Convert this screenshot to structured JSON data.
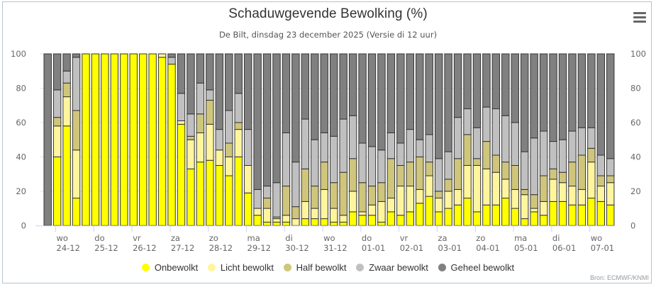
{
  "header": {
    "title": "Schaduwgevende Bewolking (%)",
    "subtitle": "De Bilt, dinsdag 23 december 2025 (Versie di 12 uur)",
    "menu_icon": "hamburger-menu-icon"
  },
  "credits": "Bron: ECMWF/KNMI",
  "colors": {
    "onbewolkt": "#ffff00",
    "licht": "#fff59d",
    "half": "#cfc67c",
    "zwaar": "#c0c0c0",
    "geheel": "#808080",
    "bar_border": "#333333",
    "grid": "#e6e6e6",
    "frame": "#b3c4d1"
  },
  "chart_data": {
    "type": "bar",
    "stacked": true,
    "title": "Schaduwgevende Bewolking (%)",
    "subtitle": "De Bilt, dinsdag 23 december 2025 (Versie di 12 uur)",
    "xlabel": "",
    "ylabel": "",
    "ylim": [
      0,
      100
    ],
    "yticks": [
      "0",
      "20",
      "40",
      "60",
      "80",
      "100"
    ],
    "grid": true,
    "legend_position": "bottom",
    "x_tick_labels": [
      {
        "day": "wo",
        "date": "24-12"
      },
      {
        "day": "do",
        "date": "25-12"
      },
      {
        "day": "vr",
        "date": "26-12"
      },
      {
        "day": "za",
        "date": "27-12"
      },
      {
        "day": "zo",
        "date": "28-12"
      },
      {
        "day": "ma",
        "date": "29-12"
      },
      {
        "day": "di",
        "date": "30-12"
      },
      {
        "day": "wo",
        "date": "31-12"
      },
      {
        "day": "do",
        "date": "01-01"
      },
      {
        "day": "vr",
        "date": "02-01"
      },
      {
        "day": "za",
        "date": "03-01"
      },
      {
        "day": "zo",
        "date": "04-01"
      },
      {
        "day": "ma",
        "date": "05-01"
      },
      {
        "day": "di",
        "date": "06-01"
      },
      {
        "day": "wo",
        "date": "07-01"
      }
    ],
    "interval": "6-hourly",
    "series": [
      {
        "name": "Onbewolkt",
        "color": "#ffff00",
        "values": [
          0,
          40,
          58,
          16,
          100,
          100,
          100,
          100,
          100,
          100,
          100,
          100,
          98,
          94,
          59,
          33,
          37,
          38,
          35,
          29,
          40,
          19,
          6,
          2,
          2,
          2,
          0,
          4,
          4,
          4,
          2,
          2,
          8,
          6,
          6,
          2,
          8,
          6,
          8,
          13,
          17,
          8,
          10,
          12,
          16,
          8,
          12,
          12,
          16,
          10,
          4,
          8,
          6,
          14,
          14,
          12,
          12,
          16,
          14,
          12
        ]
      },
      {
        "name": "Licht bewolkt",
        "color": "#fff59d",
        "values": [
          0,
          18,
          17,
          28,
          0,
          0,
          0,
          0,
          0,
          0,
          0,
          0,
          2,
          0,
          2,
          17,
          17,
          21,
          9,
          11,
          16,
          16,
          4,
          8,
          2,
          4,
          4,
          10,
          6,
          17,
          8,
          4,
          12,
          2,
          6,
          12,
          8,
          17,
          15,
          8,
          12,
          8,
          10,
          9,
          19,
          27,
          21,
          19,
          11,
          11,
          14,
          2,
          8,
          13,
          11,
          11,
          9,
          21,
          9,
          13
        ]
      },
      {
        "name": "Half bewolkt",
        "color": "#cfc67c",
        "values": [
          0,
          5,
          8,
          23,
          0,
          0,
          0,
          0,
          0,
          0,
          0,
          0,
          0,
          0,
          0,
          2,
          11,
          14,
          0,
          8,
          4,
          0,
          0,
          6,
          1,
          17,
          7,
          19,
          13,
          16,
          15,
          25,
          19,
          17,
          11,
          11,
          23,
          12,
          14,
          19,
          8,
          4,
          7,
          18,
          18,
          4,
          16,
          10,
          10,
          14,
          3,
          8,
          15,
          6,
          6,
          14,
          20,
          8,
          6,
          4
        ]
      },
      {
        "name": "Zwaar bewolkt",
        "color": "#c0c0c0",
        "values": [
          0,
          16,
          7,
          31,
          0,
          0,
          0,
          0,
          0,
          0,
          0,
          0,
          0,
          4,
          16,
          13,
          18,
          6,
          12,
          19,
          17,
          21,
          11,
          7,
          20,
          31,
          26,
          29,
          27,
          17,
          27,
          31,
          25,
          23,
          23,
          19,
          15,
          13,
          19,
          10,
          16,
          19,
          16,
          24,
          15,
          18,
          20,
          27,
          27,
          25,
          22,
          33,
          26,
          16,
          19,
          18,
          16,
          12,
          12,
          10
        ]
      },
      {
        "name": "Geheel bewolkt",
        "color": "#808080",
        "values": [
          100,
          21,
          10,
          2,
          0,
          0,
          0,
          0,
          0,
          0,
          0,
          0,
          0,
          2,
          23,
          35,
          17,
          21,
          44,
          33,
          23,
          44,
          79,
          77,
          75,
          46,
          63,
          38,
          50,
          46,
          48,
          38,
          36,
          52,
          54,
          56,
          46,
          52,
          44,
          50,
          47,
          61,
          57,
          37,
          32,
          43,
          31,
          32,
          36,
          40,
          57,
          49,
          45,
          51,
          50,
          45,
          43,
          43,
          59,
          61
        ]
      }
    ]
  }
}
